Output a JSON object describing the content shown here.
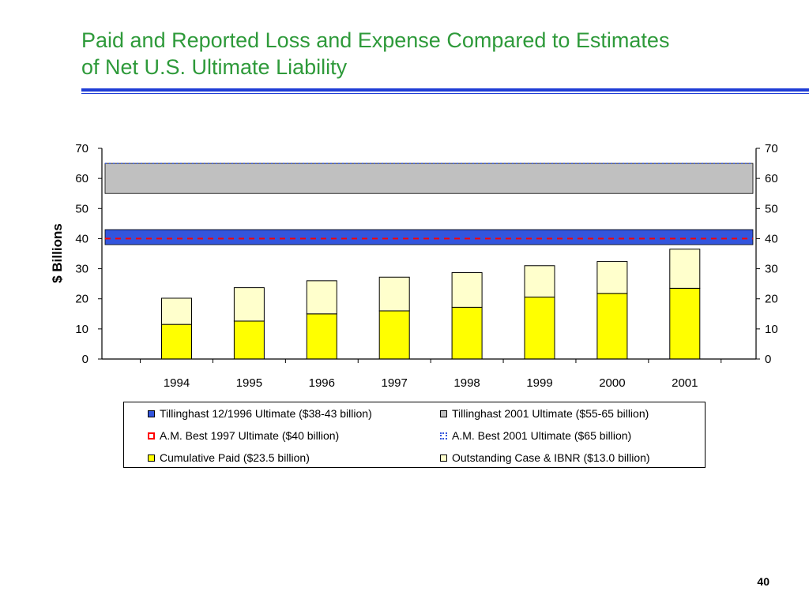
{
  "title": {
    "line1": "Paid and Reported Loss and Expense Compared to Estimates",
    "line2": "of Net U.S. Ultimate Liability"
  },
  "page_number": "40",
  "chart_data": {
    "type": "bar",
    "stacked": true,
    "categories": [
      "1994",
      "1995",
      "1996",
      "1997",
      "1998",
      "1999",
      "2000",
      "2001"
    ],
    "series": [
      {
        "name": "Cumulative Paid ($23.5 billion)",
        "values": [
          11.5,
          12.6,
          15.0,
          16.0,
          17.2,
          20.6,
          21.8,
          23.5
        ],
        "color": "#ffff00"
      },
      {
        "name": "Outstanding Case & IBNR ($13.0 billion)",
        "values": [
          8.7,
          11.1,
          11.0,
          11.2,
          11.5,
          10.4,
          10.6,
          13.0
        ],
        "color": "#ffffcc"
      }
    ],
    "bands": [
      {
        "name": "Tillinghast 12/1996 Ultimate ($38-43 billion)",
        "from": 38,
        "to": 43,
        "color": "#3355dd"
      },
      {
        "name": "Tillinghast 2001 Ultimate ($55-65 billion)",
        "from": 55,
        "to": 65,
        "color": "#c0c0c0"
      }
    ],
    "lines": [
      {
        "name": "A.M. Best 1997 Ultimate ($40 billion)",
        "value": 40,
        "color": "#ff0000",
        "style": "dashed"
      },
      {
        "name": "A.M. Best 2001 Ultimate ($65 billion)",
        "value": 65,
        "color": "#3355dd",
        "style": "dotted"
      }
    ],
    "ylabel": "$ Billions",
    "ylim": [
      0,
      70
    ],
    "yticks": [
      "0",
      "10",
      "20",
      "30",
      "40",
      "50",
      "60",
      "70"
    ],
    "secondary_yaxis": true,
    "grid": false,
    "legend_position": "bottom"
  },
  "legend": [
    {
      "label": "Tillinghast 12/1996 Ultimate ($38-43 billion)",
      "color": "#3355dd",
      "border": "#000000",
      "kind": "box"
    },
    {
      "label": "Tillinghast 2001 Ultimate ($55-65 billion)",
      "color": "#c0c0c0",
      "border": "#000000",
      "kind": "box"
    },
    {
      "label": "A.M. Best 1997 Ultimate ($40 billion)",
      "color": "#ffffff",
      "border": "#ff0000",
      "kind": "dash"
    },
    {
      "label": "A.M. Best 2001 Ultimate ($65 billion)",
      "color": "#ffffff",
      "border": "#3355dd",
      "kind": "dot"
    },
    {
      "label": "Cumulative Paid ($23.5 billion)",
      "color": "#ffff00",
      "border": "#000000",
      "kind": "box"
    },
    {
      "label": "Outstanding Case & IBNR ($13.0 billion)",
      "color": "#ffffcc",
      "border": "#000000",
      "kind": "box"
    }
  ]
}
